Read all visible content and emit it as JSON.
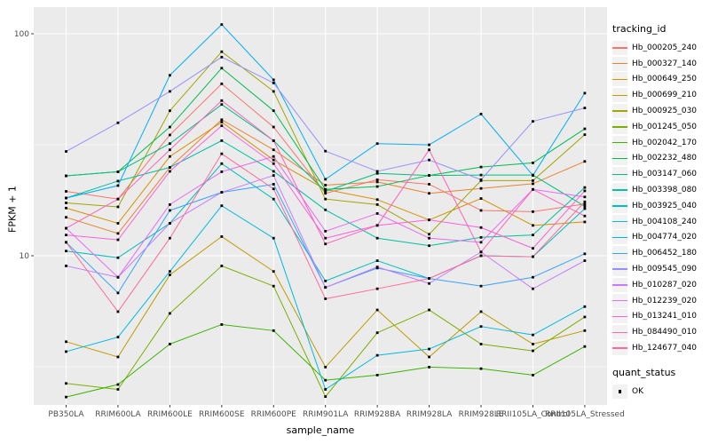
{
  "chart_data": {
    "type": "line",
    "title": "",
    "xlabel": "sample_name",
    "ylabel": "FPKM + 1",
    "y_scale": "log10",
    "y_ticks": [
      10,
      100
    ],
    "y_minor_ticks": [
      3.162,
      31.623
    ],
    "ylim": [
      2.1,
      132
    ],
    "grid": "on",
    "legend_position": "right",
    "point_marker": "black-square",
    "categories": [
      "PB350LA",
      "RRIM600LA",
      "RRIM600LE",
      "RRIM600SE",
      "RRIM600PE",
      "RRIM901LA",
      "RRIM928BA",
      "RRIM928LA",
      "RRIM928LE",
      "RRII105LA_Control",
      "RRII105LA_Stressed"
    ],
    "series": [
      {
        "name": "Hb_000205_240",
        "color": "#F8766D",
        "values": [
          19.5,
          18.0,
          35,
          59.5,
          38,
          19.1,
          22,
          21,
          16.0,
          15.8,
          17.1
        ]
      },
      {
        "name": "Hb_000327_140",
        "color": "#EA8331",
        "values": [
          14.9,
          12.6,
          25,
          41,
          30,
          20.8,
          21.5,
          19.1,
          20.1,
          21.1,
          26.6
        ]
      },
      {
        "name": "Hb_000649_250",
        "color": "#D89000",
        "values": [
          16.4,
          14.0,
          28,
          40,
          27,
          19.9,
          17.9,
          14.5,
          18.1,
          13.7,
          14.2
        ]
      },
      {
        "name": "Hb_000699_210",
        "color": "#C09B00",
        "values": [
          4.1,
          3.5,
          8.2,
          12.2,
          8.5,
          3.15,
          5.7,
          3.5,
          5.6,
          4.0,
          4.6
        ]
      },
      {
        "name": "Hb_000925_030",
        "color": "#A3A500",
        "values": [
          17.3,
          16.6,
          45,
          83,
          55,
          18.0,
          17.0,
          12.5,
          21.8,
          21.8,
          35.1
        ]
      },
      {
        "name": "Hb_001245_050",
        "color": "#7CAE00",
        "values": [
          2.66,
          2.5,
          5.5,
          9.0,
          7.3,
          2.32,
          4.5,
          5.7,
          4.0,
          3.73,
          5.3
        ]
      },
      {
        "name": "Hb_002042_170",
        "color": "#39B600",
        "values": [
          2.31,
          2.63,
          4.0,
          4.9,
          4.6,
          2.75,
          2.9,
          3.15,
          3.1,
          2.9,
          3.9
        ]
      },
      {
        "name": "Hb_002232_480",
        "color": "#00BB4E",
        "values": [
          22.9,
          23.9,
          38,
          70,
          45,
          19.9,
          20.5,
          23.0,
          25.1,
          26.2,
          37.3
        ]
      },
      {
        "name": "Hb_003147_060",
        "color": "#00BF7D",
        "values": [
          22.9,
          23.9,
          32,
          48,
          33,
          19.5,
          23.5,
          23.0,
          23.1,
          23.1,
          16.7
        ]
      },
      {
        "name": "Hb_003398_080",
        "color": "#00C1A3",
        "values": [
          18.2,
          21.7,
          25,
          33,
          24,
          16.1,
          12.0,
          11.1,
          12.1,
          12.4,
          20.3
        ]
      },
      {
        "name": "Hb_003925_040",
        "color": "#00BFC4",
        "values": [
          10.5,
          9.8,
          14,
          26,
          18,
          7.7,
          9.5,
          7.9,
          10.0,
          9.9,
          16.3
        ]
      },
      {
        "name": "Hb_004108_240",
        "color": "#00BAE0",
        "values": [
          3.7,
          4.3,
          8.5,
          16.8,
          12,
          2.5,
          3.56,
          3.8,
          4.8,
          4.4,
          5.9
        ]
      },
      {
        "name": "Hb_004774_020",
        "color": "#00B0F6",
        "values": [
          18.2,
          20.7,
          65,
          110,
          62,
          22.1,
          32,
          31.6,
          43.5,
          23,
          54
        ]
      },
      {
        "name": "Hb_006452_180",
        "color": "#35A2FF",
        "values": [
          11.5,
          6.8,
          16,
          19.3,
          21,
          7.2,
          8.8,
          7.9,
          7.3,
          8.0,
          10.2
        ]
      },
      {
        "name": "Hb_009545_090",
        "color": "#9590FF",
        "values": [
          29.5,
          39.7,
          55,
          78.5,
          60,
          29.6,
          24,
          27,
          22,
          40.3,
          46.3
        ]
      },
      {
        "name": "Hb_010287_020",
        "color": "#C77CFF",
        "values": [
          9.0,
          8.0,
          14,
          19.3,
          23,
          7.2,
          8.9,
          7.5,
          10.4,
          7.1,
          9.5
        ]
      },
      {
        "name": "Hb_012239_020",
        "color": "#E76BF3",
        "values": [
          13.3,
          8.0,
          17,
          23.9,
          28,
          12.9,
          15.5,
          12.0,
          11.5,
          19.9,
          18.4
        ]
      },
      {
        "name": "Hb_013241_010",
        "color": "#FA62DB",
        "values": [
          12.4,
          11.8,
          24,
          38.5,
          26,
          12.0,
          13.7,
          14.5,
          13.4,
          10.8,
          19.6
        ]
      },
      {
        "name": "Hb_084490_010",
        "color": "#FF62BC",
        "values": [
          13.3,
          18.0,
          30,
          50,
          33,
          11.3,
          13.7,
          30,
          10.4,
          19.9,
          15.1
        ]
      },
      {
        "name": "Hb_124677_040",
        "color": "#FF6A98",
        "values": [
          11.5,
          5.6,
          12,
          28.8,
          20,
          6.4,
          7.1,
          7.9,
          10.0,
          9.9,
          17.5
        ]
      }
    ],
    "legend_title": "tracking_id",
    "quant_legend": {
      "title": "quant_status",
      "items": [
        {
          "label": "OK"
        }
      ]
    }
  },
  "colors": {
    "panel_bg": "#EBEBEB",
    "gridline": "#FFFFFF",
    "tick_label": "#4D4D4D",
    "tick_mark": "#333333",
    "point": "#000000",
    "legend_key_bg": "#F2F2F2"
  }
}
